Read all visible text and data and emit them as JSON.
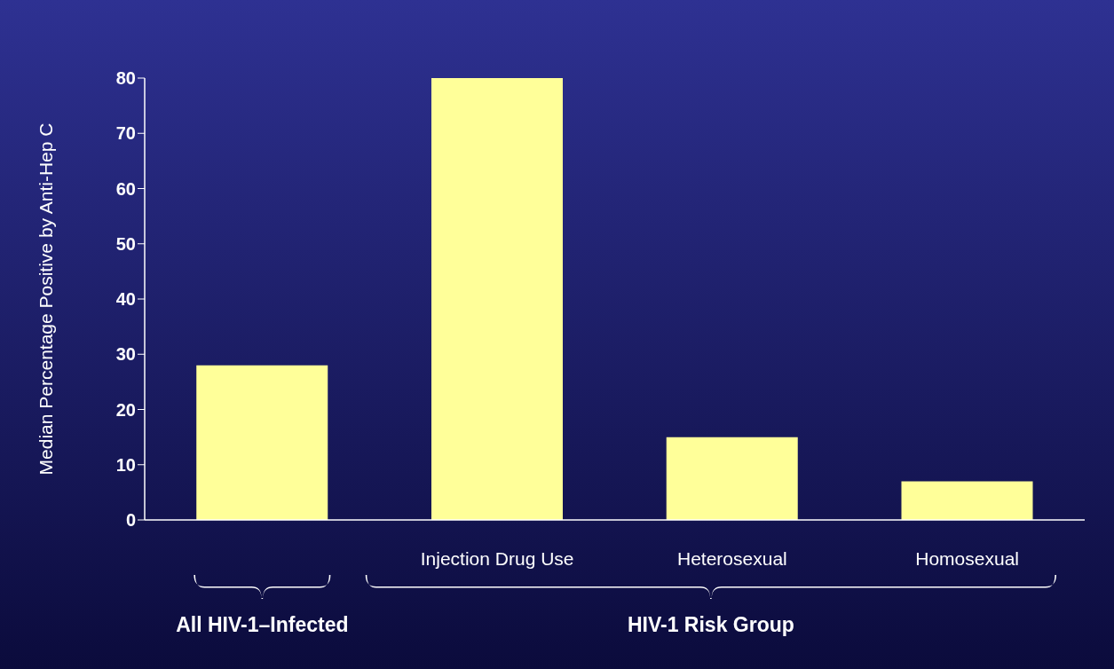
{
  "chart_data": {
    "type": "bar",
    "ylabel": "Median Percentage Positive by Anti-Hep C",
    "categories": [
      null,
      "Injection Drug Use",
      "Heterosexual",
      "Homosexual"
    ],
    "values": [
      28,
      80,
      15,
      7
    ],
    "color": "#ffff99",
    "ylim": [
      0,
      80
    ],
    "yticks": [
      0,
      10,
      20,
      30,
      40,
      50,
      60,
      70,
      80
    ],
    "annotations": [
      "All HIV-1–Infected",
      "HIV-1 Risk Group"
    ]
  }
}
